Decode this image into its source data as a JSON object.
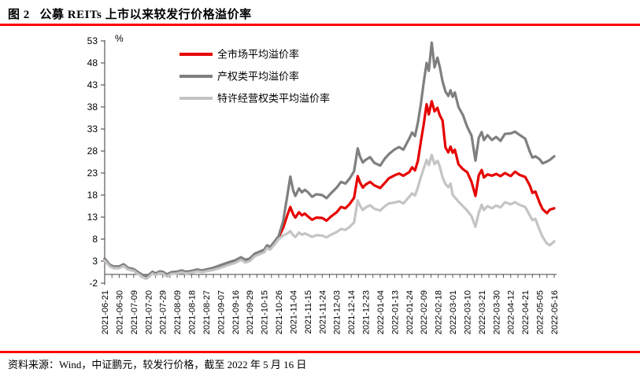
{
  "figure": {
    "title": "图 2   公募 REITs 上市以来较发行价格溢价率",
    "source": "资料来源：Wind，中证鹏元，较发行价格，截至 2022 年 5 月 16 日",
    "accent_color": "#ff0000"
  },
  "chart_data": {
    "type": "line",
    "title": "公募 REITs 上市以来较发行价格溢价率",
    "unit_label": "%",
    "grid": false,
    "legend_position": "top-left-inside",
    "ylim": [
      -2,
      53
    ],
    "yticks": [
      -2,
      3,
      8,
      13,
      18,
      23,
      28,
      33,
      38,
      43,
      48,
      53
    ],
    "x_labels": [
      "2021-06-21",
      "2021-06-30",
      "2021-07-09",
      "2021-07-20",
      "2021-07-29",
      "2021-08-09",
      "2021-08-18",
      "2021-08-27",
      "2021-09-07",
      "2021-09-16",
      "2021-09-29",
      "2021-10-15",
      "2021-10-26",
      "2021-11-04",
      "2021-11-15",
      "2021-11-24",
      "2021-12-03",
      "2021-12-14",
      "2021-12-23",
      "2022-01-04",
      "2022-01-13",
      "2022-01-24",
      "2022-02-09",
      "2022-02-18",
      "2022-03-01",
      "2022-03-10",
      "2022-03-21",
      "2022-03-30",
      "2022-04-12",
      "2022-04-21",
      "2022-05-05",
      "2022-05-16"
    ],
    "x_units": "label-index",
    "x": [
      0,
      0.35,
      0.6,
      1.0,
      1.3,
      1.6,
      2.0,
      2.3,
      2.6,
      2.85,
      3.0,
      3.3,
      3.5,
      3.8,
      4.0,
      4.3,
      4.6,
      5.0,
      5.3,
      5.6,
      6.0,
      6.4,
      6.7,
      7.0,
      7.5,
      8.0,
      8.5,
      9.0,
      9.4,
      9.7,
      10.0,
      10.35,
      10.7,
      11.0,
      11.2,
      11.4,
      11.7,
      12.0,
      12.3,
      12.6,
      12.8,
      13.0,
      13.15,
      13.4,
      13.6,
      13.8,
      14.0,
      14.3,
      14.6,
      15.0,
      15.3,
      15.6,
      16.0,
      16.3,
      16.6,
      16.9,
      17.2,
      17.45,
      17.6,
      17.8,
      18.0,
      18.3,
      18.6,
      19.0,
      19.3,
      19.6,
      20.0,
      20.3,
      20.6,
      21.0,
      21.2,
      21.4,
      21.6,
      21.8,
      22.0,
      22.2,
      22.35,
      22.55,
      22.75,
      22.95,
      23.1,
      23.3,
      23.5,
      23.7,
      23.85,
      24.0,
      24.15,
      24.4,
      24.7,
      25.0,
      25.3,
      25.57,
      25.8,
      26.0,
      26.15,
      26.4,
      26.7,
      27.0,
      27.3,
      27.6,
      28.0,
      28.3,
      28.6,
      29.0,
      29.3,
      29.5,
      29.7,
      30.0,
      30.2,
      30.5,
      30.7,
      31.0
    ],
    "series": [
      {
        "name": "全市场平均溢价率",
        "color": "#e60000",
        "stroke_width": 3.2,
        "values": [
          3.4,
          2.0,
          1.6,
          1.6,
          2.1,
          1.3,
          1.0,
          0.3,
          -0.3,
          -0.6,
          -0.4,
          0.4,
          0.0,
          0.5,
          0.4,
          -0.2,
          0.3,
          0.4,
          0.7,
          0.4,
          0.6,
          0.9,
          0.7,
          0.9,
          1.2,
          1.8,
          2.4,
          2.9,
          3.6,
          3.0,
          3.3,
          4.4,
          4.9,
          5.3,
          6.3,
          5.9,
          7.0,
          8.4,
          10.5,
          13.5,
          15.3,
          13.6,
          12.9,
          14.1,
          13.4,
          13.8,
          13.2,
          12.4,
          12.9,
          12.8,
          12.2,
          13.1,
          14.1,
          15.3,
          15.0,
          16.0,
          17.4,
          22.3,
          20.9,
          19.7,
          20.4,
          21.0,
          20.2,
          19.6,
          20.7,
          21.8,
          22.5,
          22.9,
          22.4,
          23.2,
          24.3,
          23.6,
          25.8,
          30.0,
          34.0,
          38.6,
          36.3,
          39.3,
          37.0,
          37.8,
          36.2,
          34.9,
          28.8,
          27.7,
          29.0,
          27.6,
          28.3,
          25.0,
          23.9,
          23.2,
          21.0,
          17.8,
          22.5,
          23.7,
          22.0,
          22.7,
          22.4,
          22.8,
          22.3,
          23.0,
          22.3,
          23.3,
          22.6,
          22.1,
          20.3,
          18.5,
          18.8,
          16.2,
          14.8,
          13.9,
          14.7,
          15.0
        ]
      },
      {
        "name": "产权类平均溢价率",
        "color": "#7f7f7f",
        "stroke_width": 3.2,
        "values": [
          3.6,
          2.2,
          1.8,
          1.8,
          2.3,
          1.5,
          1.2,
          0.5,
          -0.1,
          -0.4,
          -0.2,
          0.6,
          0.2,
          0.7,
          0.6,
          0.0,
          0.5,
          0.6,
          0.9,
          0.6,
          0.8,
          1.1,
          0.9,
          1.1,
          1.5,
          2.1,
          2.7,
          3.2,
          3.9,
          3.3,
          3.6,
          4.7,
          5.2,
          5.6,
          6.6,
          6.2,
          7.4,
          8.7,
          12.0,
          18.0,
          22.2,
          19.0,
          17.8,
          19.5,
          18.6,
          19.2,
          18.7,
          17.6,
          18.2,
          18.0,
          17.3,
          18.4,
          19.7,
          21.0,
          20.6,
          21.8,
          23.4,
          28.6,
          26.8,
          25.4,
          26.0,
          26.6,
          25.3,
          24.7,
          26.2,
          27.3,
          28.4,
          28.9,
          28.3,
          30.8,
          32.2,
          31.4,
          34.5,
          38.5,
          43.5,
          48.0,
          46.2,
          52.6,
          47.0,
          49.2,
          47.2,
          43.8,
          41.5,
          40.5,
          41.8,
          40.3,
          41.3,
          38.0,
          36.2,
          33.5,
          31.5,
          25.8,
          31.0,
          32.3,
          30.5,
          31.6,
          30.5,
          31.2,
          30.3,
          31.9,
          32.0,
          32.4,
          31.7,
          30.8,
          28.0,
          26.5,
          26.8,
          26.1,
          25.2,
          25.6,
          26.0,
          26.8
        ]
      },
      {
        "name": "特许经营权类平均溢价率",
        "color": "#c4c4c4",
        "stroke_width": 3.2,
        "values": [
          3.1,
          1.8,
          1.4,
          1.4,
          1.9,
          1.1,
          0.8,
          0.1,
          -0.6,
          -1.0,
          -0.7,
          0.2,
          -0.2,
          0.3,
          0.2,
          -0.5,
          0.1,
          0.2,
          0.5,
          0.2,
          0.4,
          0.7,
          0.5,
          0.7,
          1.0,
          1.5,
          2.1,
          2.6,
          3.3,
          2.7,
          3.0,
          4.1,
          4.6,
          5.0,
          6.0,
          5.6,
          6.7,
          8.0,
          8.8,
          9.3,
          9.8,
          8.9,
          8.5,
          9.5,
          9.0,
          9.3,
          9.0,
          8.5,
          8.9,
          8.8,
          8.4,
          9.0,
          9.6,
          10.3,
          10.1,
          10.8,
          11.8,
          16.8,
          15.6,
          14.6,
          15.2,
          15.7,
          14.9,
          14.5,
          15.4,
          16.1,
          16.3,
          16.6,
          16.1,
          17.6,
          18.4,
          17.9,
          19.8,
          22.0,
          24.0,
          26.0,
          24.8,
          27.1,
          25.0,
          25.8,
          24.6,
          22.0,
          20.5,
          19.8,
          20.6,
          18.0,
          17.5,
          16.5,
          15.5,
          14.5,
          13.2,
          10.8,
          14.0,
          15.8,
          14.6,
          15.5,
          15.0,
          15.6,
          15.2,
          16.4,
          15.9,
          16.4,
          15.8,
          15.3,
          13.5,
          12.3,
          12.6,
          10.0,
          8.5,
          7.0,
          6.6,
          7.5
        ]
      }
    ]
  }
}
